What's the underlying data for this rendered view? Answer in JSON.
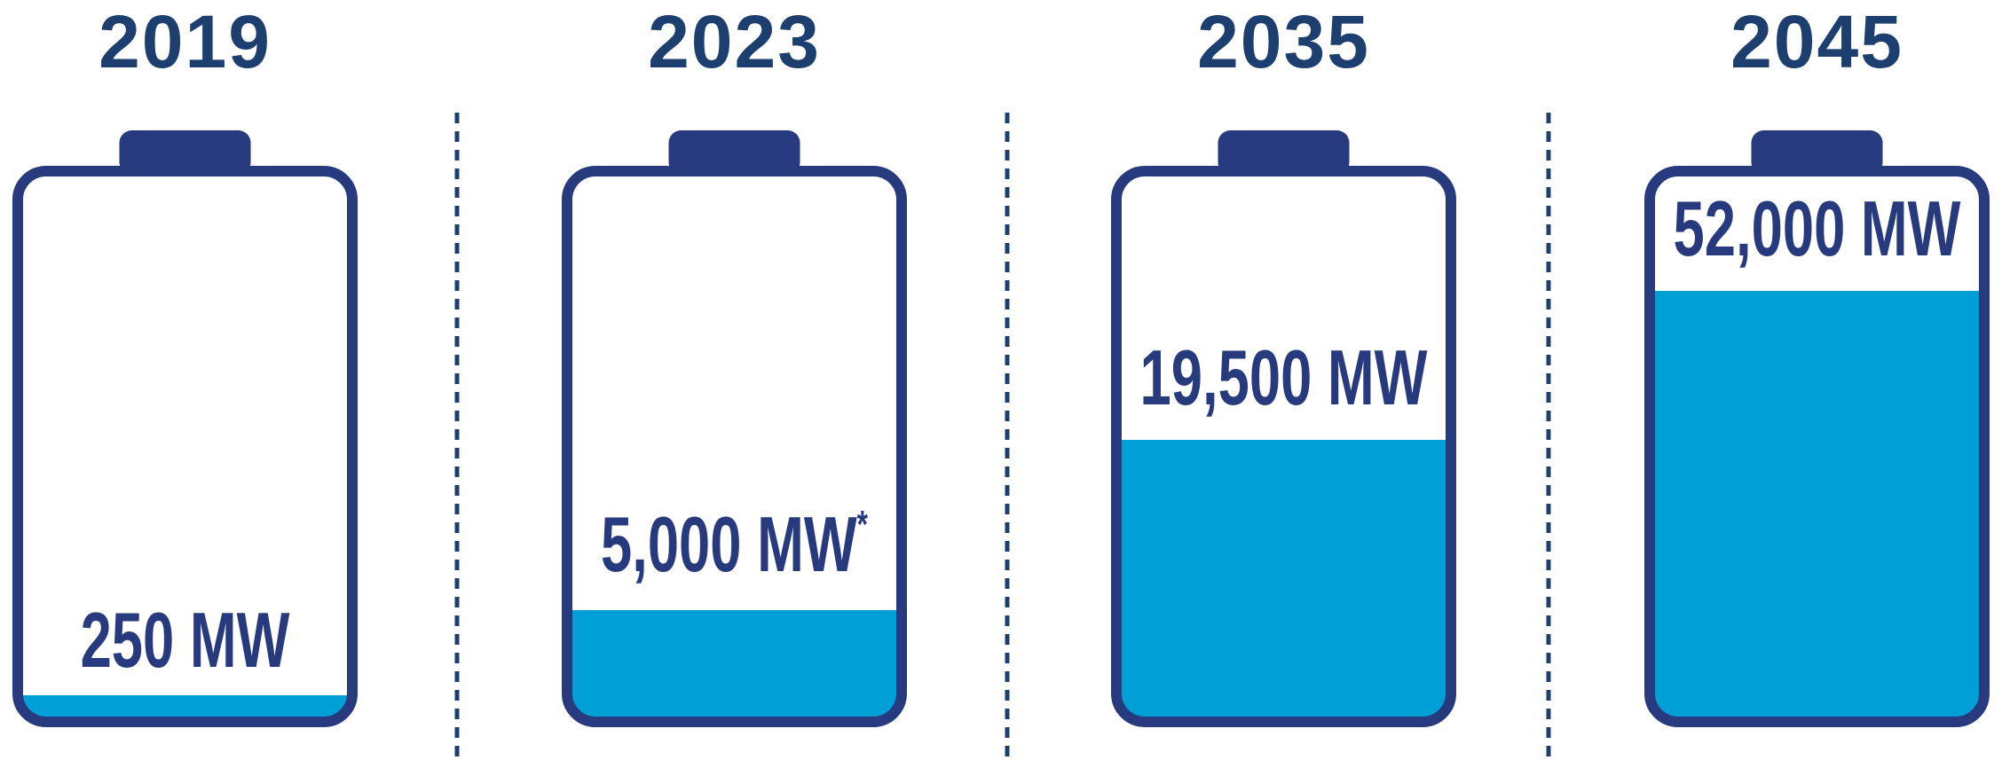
{
  "items": [
    {
      "year": "2019",
      "label": "250 MW"
    },
    {
      "year": "2023",
      "label": "5,000 MW",
      "footnote_mark": "*"
    },
    {
      "year": "2035",
      "label": "19,500 MW"
    },
    {
      "year": "2045",
      "label": "52,000 MW"
    }
  ]
}
